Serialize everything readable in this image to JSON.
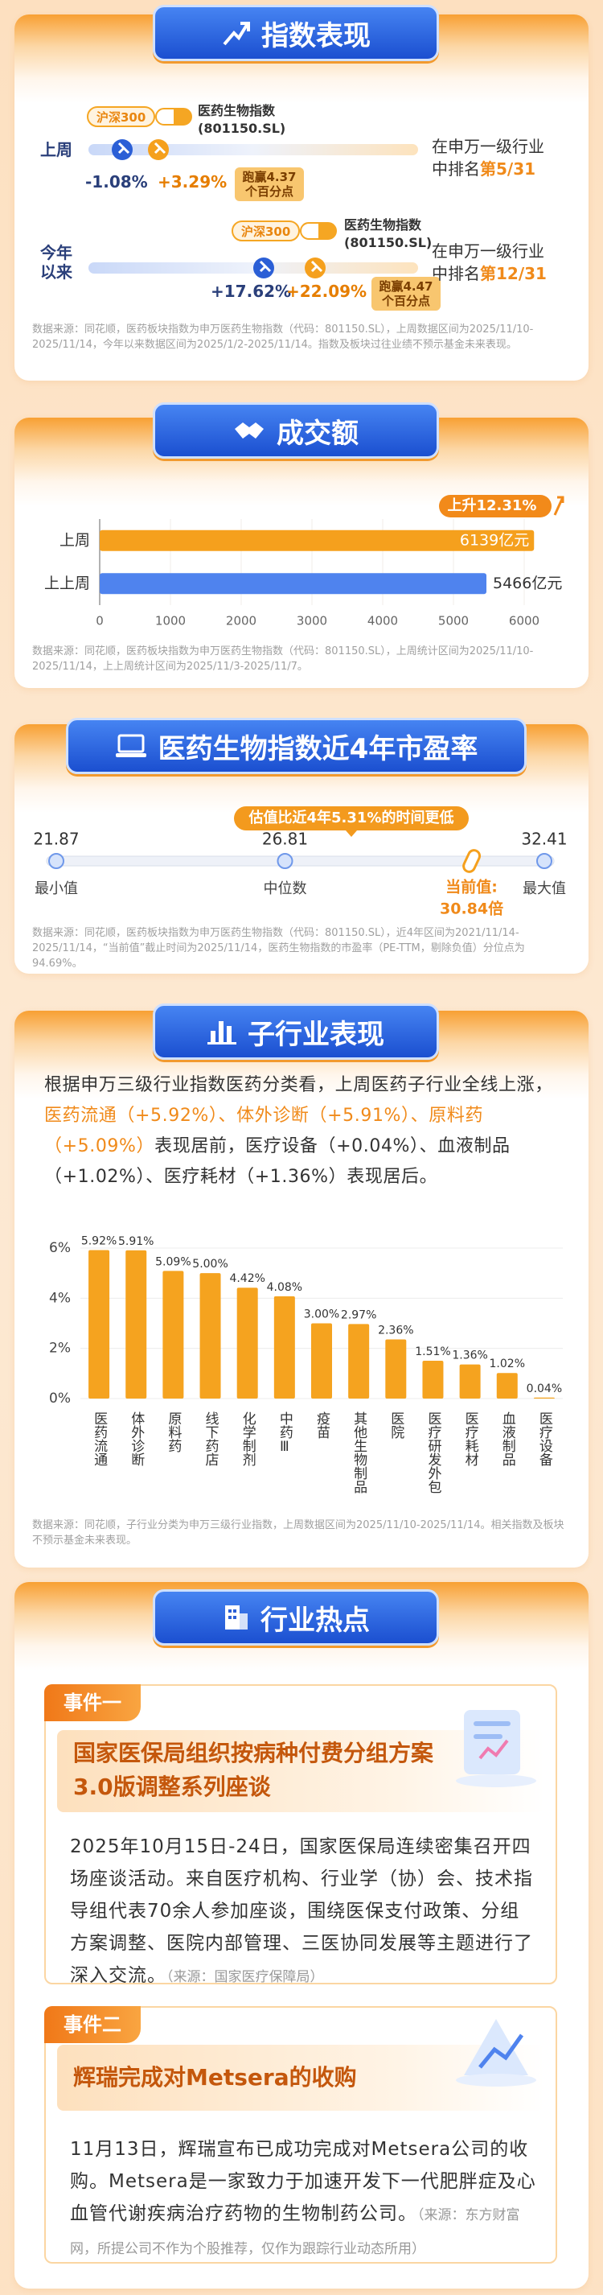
{
  "index_performance": {
    "title": "指数表现",
    "rows": [
      {
        "period": "上周",
        "benchmark": "沪深300",
        "index_name": "医药生物指数",
        "index_code": "(801150.SL)",
        "benchmark_change": "-1.08%",
        "index_change": "+3.29%",
        "outperform": "跑赢4.37",
        "outperform_unit": "个百分点",
        "rank_line1": "在申万一级行业",
        "rank_line2": "中排名",
        "rank": "第5/31"
      },
      {
        "period": "今年以来",
        "benchmark": "沪深300",
        "index_name": "医药生物指数",
        "index_code": "(801150.SL)",
        "benchmark_change": "+17.62%",
        "index_change": "+22.09%",
        "outperform": "跑赢4.47",
        "outperform_unit": "个百分点",
        "rank_line1": "在申万一级行业",
        "rank_line2": "中排名",
        "rank": "第12/31"
      }
    ],
    "source": "数据来源：同花顺，医药板块指数为申万医药生物指数（代码：801150.SL），上周数据区间为2025/11/10-2025/11/14，今年以来数据区间为2025/1/2-2025/11/14。指数及板块过往业绩不预示基金未来表现。"
  },
  "chart_data": [
    {
      "type": "hbar",
      "title": "成交额",
      "categories": [
        "上周",
        "上上周"
      ],
      "values": [
        6139,
        5466
      ],
      "value_labels": [
        "6139亿元",
        "5466亿元"
      ],
      "colors": [
        "#f5a01d",
        "#4f83ee"
      ],
      "xlim": [
        0,
        6000
      ],
      "xticks": [
        0,
        1000,
        2000,
        3000,
        4000,
        5000,
        6000
      ],
      "annotation": "上升12.31%",
      "source": "数据来源：同花顺，医药板块指数为申万医药生物指数（代码：801150.SL），上周统计区间为2025/11/10-2025/11/14，上上周统计区间为2025/11/3-2025/11/7。"
    },
    {
      "type": "range",
      "title": "医药生物指数近4年市盈率",
      "xlim": [
        21.87,
        32.41
      ],
      "points": [
        {
          "label": "最小值",
          "value": 21.87
        },
        {
          "label": "中位数",
          "value": 26.81
        },
        {
          "label": "最大值",
          "value": 32.41
        }
      ],
      "current": {
        "label": "当前值:",
        "value": 30.84,
        "value_label": "30.84倍"
      },
      "annotation": "估值比近4年5.31%的时间更低",
      "source": "数据来源：同花顺，医药板块指数为申万医药生物指数（代码：801150.SL），近4年区间为2021/11/14-2025/11/14，“当前值”截止时间为2025/11/14，医药生物指数的市盈率（PE-TTM，剔除负值）分位点为94.69%。"
    },
    {
      "type": "bar",
      "title": "子行业表现",
      "intro_before": "根据申万三级行业指数医药分类看，上周医药子行业全线上涨，",
      "intro_highlight": "医药流通（+5.92%）、体外诊断（+5.91%）、原料药（+5.09%）",
      "intro_after": "表现居前，医疗设备（+0.04%）、血液制品（+1.02%）、医疗耗材（+1.36%）表现居后。",
      "categories": [
        "医药流通",
        "体外诊断",
        "原料药",
        "线下药店",
        "化学制剂",
        "中药Ⅲ",
        "疫苗",
        "其他生物制品",
        "医院",
        "医疗研发外包",
        "医疗耗材",
        "血液制品",
        "医疗设备"
      ],
      "values": [
        5.92,
        5.91,
        5.09,
        5.0,
        4.42,
        4.08,
        3.0,
        2.97,
        2.36,
        1.51,
        1.36,
        1.02,
        0.04
      ],
      "value_labels": [
        "5.92%",
        "5.91%",
        "5.09%",
        "5.00%",
        "4.42%",
        "4.08%",
        "3.00%",
        "2.97%",
        "2.36%",
        "1.51%",
        "1.36%",
        "1.02%",
        "0.04%"
      ],
      "color": "#f5a31f",
      "ylim": [
        0,
        6
      ],
      "yticks": [
        {
          "value": 0,
          "label": "0%"
        },
        {
          "value": 2,
          "label": "2%"
        },
        {
          "value": 4,
          "label": "4%"
        },
        {
          "value": 6,
          "label": "6%"
        }
      ],
      "grid": true,
      "source": "数据来源：同花顺，子行业分类为申万三级行业指数，上周数据区间为2025/11/10-2025/11/14。相关指数及板块不预示基金未来表现。"
    }
  ],
  "hot_topics": {
    "title": "行业热点",
    "events": [
      {
        "tag": "事件一",
        "title": "国家医保局组织按病种付费分组方案3.0版调整系列座谈",
        "body": "2025年10月15日-24日，国家医保局连续密集召开四场座谈活动。来自医疗机构、行业学（协）会、技术指导组代表70余人参加座谈，围绕医保支付政策、分组方案调整、医院内部管理、三医协同发展等主题进行了深入交流。",
        "source": "（来源：国家医疗保障局）"
      },
      {
        "tag": "事件二",
        "title": "辉瑞完成对Metsera的收购",
        "body": "11月13日，辉瑞宣布已成功完成对Metsera公司的收购。Metsera是一家致力于加速开发下一代肥胖症及心血管代谢疾病治疗药物的生物制药公司。",
        "source": "（来源：东方财富网，所提公司不作为个股推荐，仅作为跟踪行业动态所用）"
      }
    ]
  }
}
